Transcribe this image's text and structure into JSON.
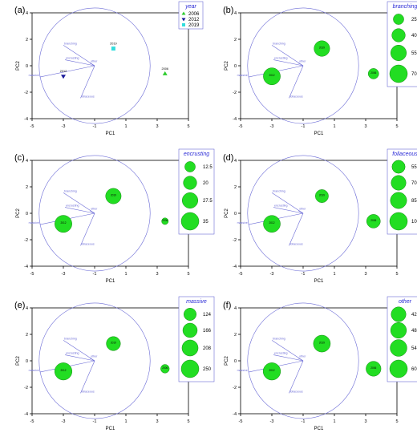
{
  "figure": {
    "panels": [
      {
        "label": "(a)",
        "legend_title": "year",
        "legend_items": [
          "2006",
          "2012",
          "2019"
        ]
      },
      {
        "label": "(b)",
        "legend_title": "branching",
        "legend_items": [
          "25",
          "40",
          "55",
          "70"
        ]
      },
      {
        "label": "(c)",
        "legend_title": "encrusting",
        "legend_items": [
          "12.5",
          "20",
          "27.5",
          "35"
        ]
      },
      {
        "label": "(d)",
        "legend_title": "foliaceous",
        "legend_items": [
          "55",
          "70",
          "85",
          "100"
        ]
      },
      {
        "label": "(e)",
        "legend_title": "massive",
        "legend_items": [
          "124",
          "166",
          "208",
          "250"
        ]
      },
      {
        "label": "(f)",
        "legend_title": "other",
        "legend_items": [
          "42",
          "48",
          "54",
          "60"
        ]
      }
    ]
  },
  "colors": {
    "axis": "#000000",
    "circle": "#6b6bd6",
    "vector": "#6b6bd6",
    "bubble_fill": "#22dd22",
    "bubble_stroke": "#118811",
    "legend_border": "#6b6bd6",
    "legend_title": "#2a2ad6",
    "year_2006": "#2ecc2e",
    "year_2012": "#1a1a9a",
    "year_2019": "#33dddd"
  },
  "chart_data": [
    {
      "type": "scatter",
      "title": "(a)",
      "xlabel": "PC1",
      "ylabel": "PC2",
      "xlim": [
        -5,
        5
      ],
      "ylim": [
        -4,
        4
      ],
      "xticks": [
        "-5",
        "-3",
        "-1",
        "1",
        "3",
        "5"
      ],
      "yticks": [
        "4",
        "2",
        "0",
        "-2",
        "-4"
      ],
      "vectors": [
        {
          "name": "branching",
          "x": -3.0,
          "y": 1.55
        },
        {
          "name": "encrusting",
          "x": -2.9,
          "y": 0.45
        },
        {
          "name": "other",
          "x": -1.3,
          "y": 0.2
        },
        {
          "name": "massive",
          "x": -4.5,
          "y": -0.85
        },
        {
          "name": "foliaceous",
          "x": -1.9,
          "y": -2.45
        }
      ],
      "points": [
        {
          "label": "2006",
          "x": 3.5,
          "y": -0.6,
          "marker": "triangle-up",
          "color": "#2ecc2e"
        },
        {
          "label": "2012",
          "x": -3.0,
          "y": -0.8,
          "marker": "triangle-down",
          "color": "#1a1a9a"
        },
        {
          "label": "2019",
          "x": 0.2,
          "y": 1.3,
          "marker": "square",
          "color": "#33dddd"
        }
      ],
      "legend": {
        "title": "year",
        "items": [
          "2006",
          "2012",
          "2019"
        ],
        "placement": "top-right"
      }
    },
    {
      "type": "bubble",
      "title": "(b)",
      "xlabel": "PC1",
      "ylabel": "PC2",
      "xlim": [
        -5,
        5
      ],
      "ylim": [
        -4,
        4
      ],
      "xticks": [
        "-5",
        "-3",
        "-1",
        "1",
        "3",
        "5"
      ],
      "yticks": [
        "4",
        "2",
        "0",
        "-2",
        "-4"
      ],
      "variable": "branching",
      "points": [
        {
          "year": "2006",
          "x": 3.5,
          "y": -0.6,
          "value": 25
        },
        {
          "year": "2012",
          "x": -3.0,
          "y": -0.8,
          "value": 65
        },
        {
          "year": "2019",
          "x": 0.2,
          "y": 1.3,
          "value": 55
        }
      ],
      "legend": {
        "title": "branching",
        "values": [
          25,
          40,
          55,
          70
        ],
        "placement": "right"
      }
    },
    {
      "type": "bubble",
      "title": "(c)",
      "xlabel": "PC1",
      "ylabel": "PC2",
      "xlim": [
        -5,
        5
      ],
      "ylim": [
        -4,
        4
      ],
      "xticks": [
        "-5",
        "-3",
        "-1",
        "1",
        "3",
        "5"
      ],
      "yticks": [
        "4",
        "2",
        "0",
        "-2",
        "-4"
      ],
      "variable": "encrusting",
      "points": [
        {
          "year": "2006",
          "x": 3.5,
          "y": -0.6,
          "value": 5
        },
        {
          "year": "2012",
          "x": -3.0,
          "y": -0.8,
          "value": 33
        },
        {
          "year": "2019",
          "x": 0.2,
          "y": 1.3,
          "value": 27
        }
      ],
      "legend": {
        "title": "encrusting",
        "values": [
          12.5,
          20,
          27.5,
          35
        ],
        "placement": "right"
      }
    },
    {
      "type": "bubble",
      "title": "(d)",
      "xlabel": "PC1",
      "ylabel": "PC2",
      "xlim": [
        -5,
        5
      ],
      "ylim": [
        -4,
        4
      ],
      "xticks": [
        "-5",
        "-3",
        "-1",
        "1",
        "3",
        "5"
      ],
      "yticks": [
        "4",
        "2",
        "0",
        "-2",
        "-4"
      ],
      "variable": "foliaceous",
      "points": [
        {
          "year": "2006",
          "x": 3.5,
          "y": -0.6,
          "value": 60
        },
        {
          "year": "2012",
          "x": -3.0,
          "y": -0.8,
          "value": 92
        },
        {
          "year": "2019",
          "x": 0.2,
          "y": 1.3,
          "value": 55
        }
      ],
      "legend": {
        "title": "foliaceous",
        "values": [
          55,
          70,
          85,
          100
        ],
        "placement": "right"
      }
    },
    {
      "type": "bubble",
      "title": "(e)",
      "xlabel": "PC1",
      "ylabel": "PC2",
      "xlim": [
        -5,
        5
      ],
      "ylim": [
        -4,
        4
      ],
      "xticks": [
        "-5",
        "-3",
        "-1",
        "1",
        "3",
        "5"
      ],
      "yticks": [
        "4",
        "2",
        "0",
        "-2",
        "-4"
      ],
      "variable": "massive",
      "points": [
        {
          "year": "2006",
          "x": 3.5,
          "y": -0.6,
          "value": 60
        },
        {
          "year": "2012",
          "x": -3.0,
          "y": -0.8,
          "value": 240
        },
        {
          "year": "2019",
          "x": 0.2,
          "y": 1.3,
          "value": 160
        }
      ],
      "legend": {
        "title": "massive",
        "values": [
          124,
          166,
          208,
          250
        ],
        "placement": "right"
      }
    },
    {
      "type": "bubble",
      "title": "(f)",
      "xlabel": "PC1",
      "ylabel": "PC2",
      "xlim": [
        -5,
        5
      ],
      "ylim": [
        -4,
        4
      ],
      "xticks": [
        "-5",
        "-3",
        "-1",
        "1",
        "3",
        "5"
      ],
      "yticks": [
        "4",
        "2",
        "0",
        "-2",
        "-4"
      ],
      "variable": "other",
      "points": [
        {
          "year": "2006",
          "x": 3.5,
          "y": -0.6,
          "value": 43
        },
        {
          "year": "2012",
          "x": -3.0,
          "y": -0.8,
          "value": 58
        },
        {
          "year": "2019",
          "x": 0.2,
          "y": 1.3,
          "value": 55
        }
      ],
      "legend": {
        "title": "other",
        "values": [
          42,
          48,
          54,
          60
        ],
        "placement": "right"
      }
    }
  ]
}
